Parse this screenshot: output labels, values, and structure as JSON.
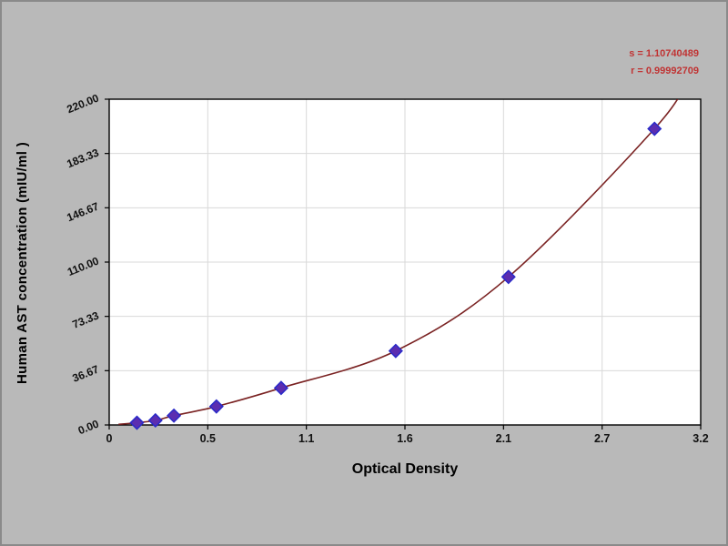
{
  "page": {
    "background": "#b9b9b9"
  },
  "chart_data": {
    "type": "scatter",
    "title": "",
    "xlabel": "Optical Density",
    "ylabel": "Human AST concentration (mIU/ml )",
    "x_range": [
      0,
      3.2
    ],
    "y_range": [
      0,
      220
    ],
    "xtick_labels": [
      "0",
      "0.5",
      "1.1",
      "1.6",
      "2.1",
      "2.7",
      "3.2"
    ],
    "ytick_labels": [
      "0.00",
      "36.67",
      "73.33",
      "110.00",
      "146.67",
      "183.33",
      "220.00"
    ],
    "grid": true,
    "legend": "none",
    "annotations": [
      "s = 1.10740489",
      "r = 0.99992709"
    ],
    "points": {
      "x": [
        0.15,
        0.25,
        0.35,
        0.58,
        0.93,
        1.55,
        2.16,
        2.95
      ],
      "y": [
        1.5,
        3.1,
        6.3,
        12.5,
        25,
        50,
        100,
        200
      ]
    },
    "series_note": "standard curve fit through measured points",
    "colors": {
      "curve": "#7a2222",
      "point_fill": "#5b2db0",
      "point_stroke": "#2a2ac8",
      "annotation": "#c03434",
      "grid": "#d9d9d9",
      "plot_bg": "#ffffff",
      "axis": "#000000"
    }
  }
}
